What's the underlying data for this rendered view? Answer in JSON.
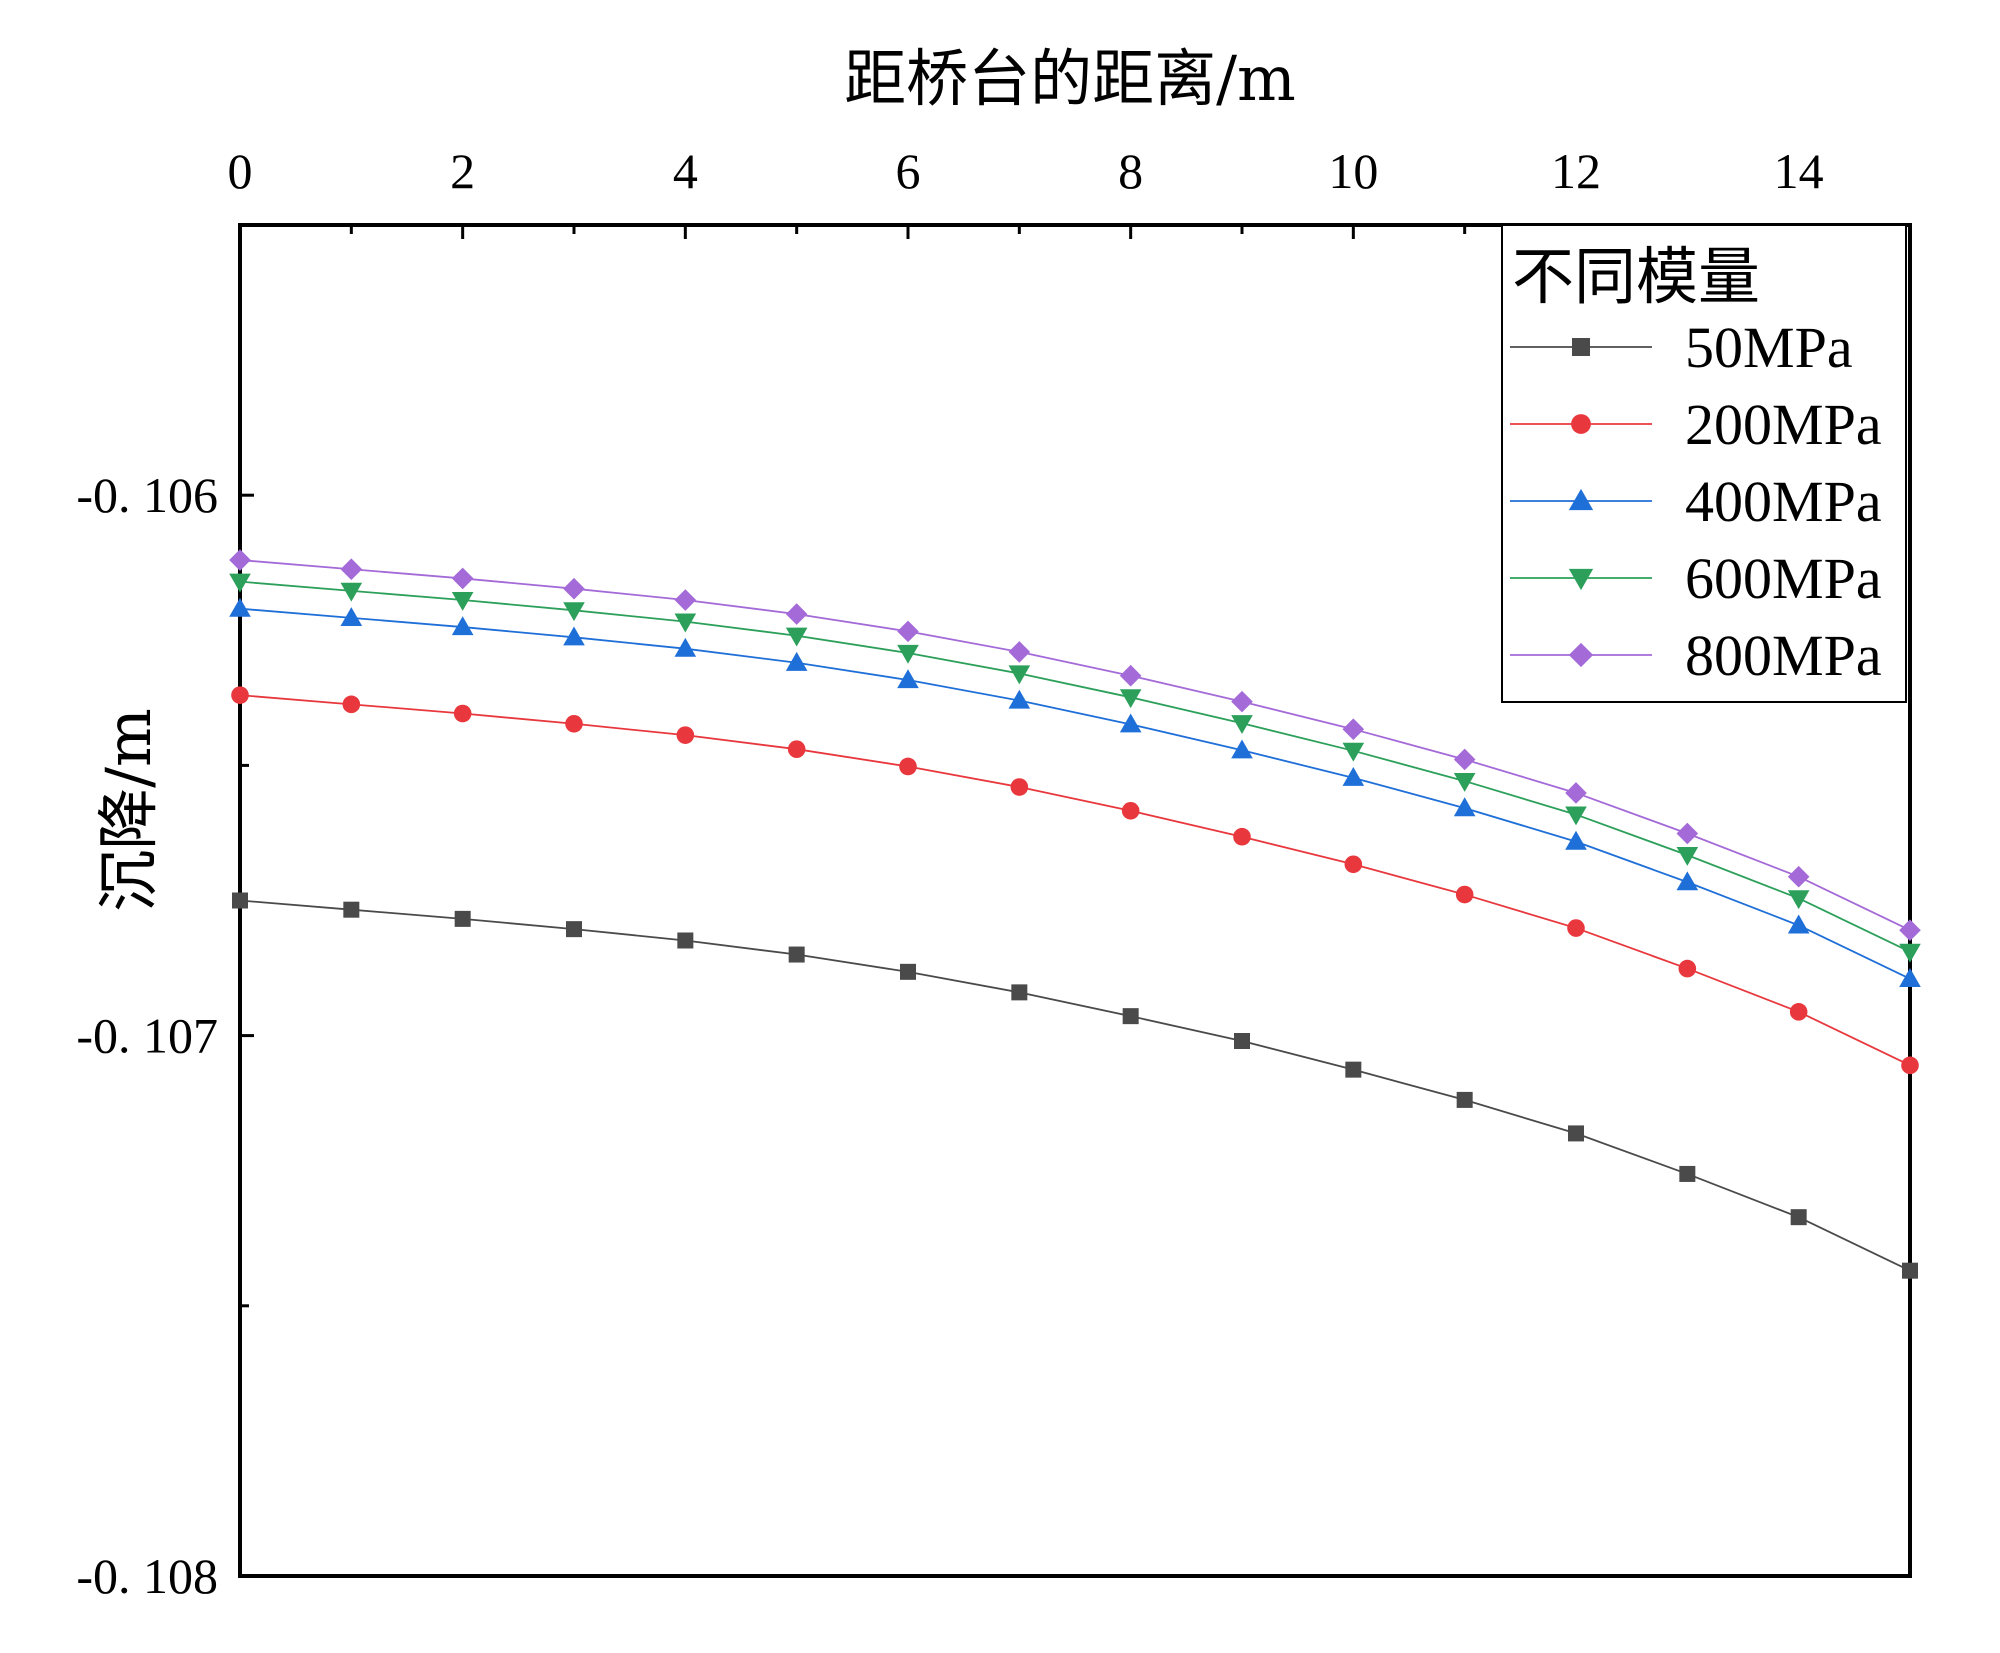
{
  "chart_data": {
    "type": "line",
    "title": "",
    "xlabel": "距桥台的距离/m",
    "ylabel": "沉降/m",
    "xaxis_position": "top",
    "xlim": [
      0,
      15
    ],
    "ylim": [
      -0.108,
      -0.1055
    ],
    "x_ticks": [
      0,
      2,
      4,
      6,
      8,
      10,
      12,
      14
    ],
    "x_tick_labels": [
      "0",
      "2",
      "4",
      "6",
      "8",
      "10",
      "12",
      "14"
    ],
    "y_ticks": [
      -0.106,
      -0.107,
      -0.108
    ],
    "y_tick_labels": [
      "-0. 106",
      "-0. 107",
      "-0. 108"
    ],
    "grid": false,
    "legend_title": "不同模量",
    "legend_position": "top-right",
    "x": [
      0,
      1,
      2,
      3,
      4,
      5,
      6,
      7,
      8,
      9,
      10,
      11,
      12,
      13,
      14,
      15
    ],
    "series": [
      {
        "name": "50MPa",
        "color": "#4a4a4a",
        "marker": "square",
        "values": [
          -0.10675,
          -0.106767,
          -0.106784,
          -0.106803,
          -0.106824,
          -0.10685,
          -0.106882,
          -0.10692,
          -0.106964,
          -0.10701,
          -0.107063,
          -0.107119,
          -0.107181,
          -0.107256,
          -0.107336,
          -0.107435
        ]
      },
      {
        "name": "200MPa",
        "color": "#e8383d",
        "marker": "circle",
        "values": [
          -0.10637,
          -0.106387,
          -0.106404,
          -0.106423,
          -0.106444,
          -0.10647,
          -0.106502,
          -0.10654,
          -0.106584,
          -0.106632,
          -0.106683,
          -0.106739,
          -0.106801,
          -0.106876,
          -0.106956,
          -0.107055
        ]
      },
      {
        "name": "400MPa",
        "color": "#1f6fd8",
        "marker": "triangle-up",
        "values": [
          -0.10621,
          -0.106227,
          -0.106244,
          -0.106263,
          -0.106284,
          -0.10631,
          -0.106342,
          -0.10638,
          -0.106424,
          -0.106472,
          -0.106523,
          -0.106579,
          -0.106641,
          -0.106716,
          -0.106796,
          -0.106895
        ]
      },
      {
        "name": "600MPa",
        "color": "#2ca05a",
        "marker": "triangle-down",
        "values": [
          -0.10616,
          -0.106177,
          -0.106194,
          -0.106213,
          -0.106234,
          -0.10626,
          -0.106292,
          -0.10633,
          -0.106374,
          -0.106422,
          -0.106473,
          -0.106529,
          -0.106591,
          -0.106666,
          -0.106746,
          -0.106845
        ]
      },
      {
        "name": "800MPa",
        "color": "#a46ad8",
        "marker": "diamond",
        "values": [
          -0.10612,
          -0.106137,
          -0.106154,
          -0.106173,
          -0.106194,
          -0.10622,
          -0.106252,
          -0.10629,
          -0.106334,
          -0.106382,
          -0.106433,
          -0.106489,
          -0.106551,
          -0.106626,
          -0.106706,
          -0.106805
        ]
      }
    ]
  }
}
